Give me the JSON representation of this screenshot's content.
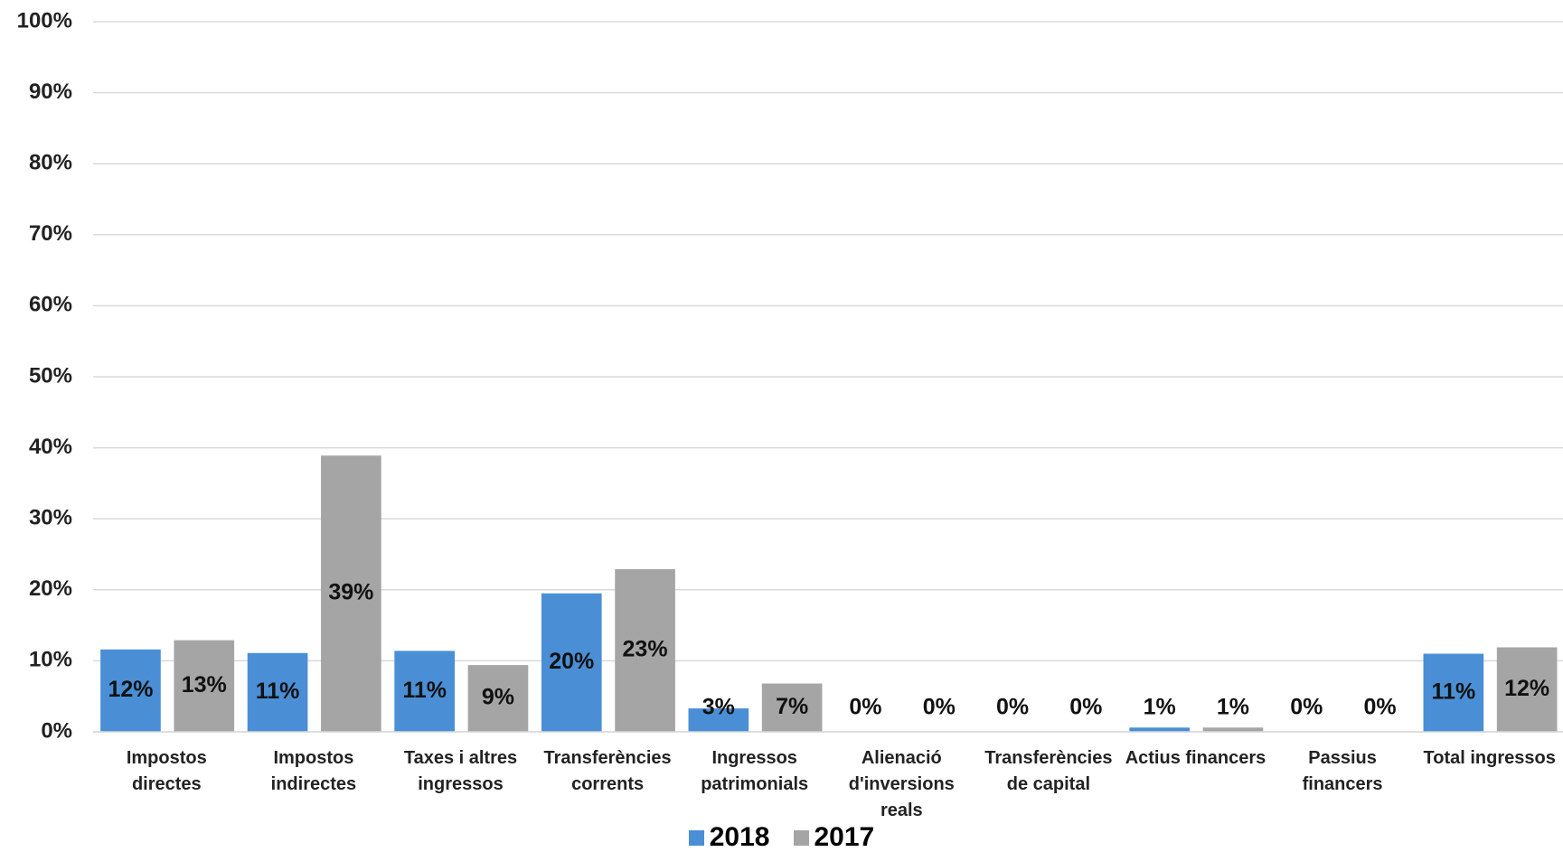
{
  "chart_data": {
    "type": "bar",
    "categories": [
      "Impostos directes",
      "Impostos indirectes",
      "Taxes i altres ingressos",
      "Transferències corrents",
      "Ingressos patrimonials",
      "Alienació d'inversions reals",
      "Transferències de capital",
      "Actius financers",
      "Passius financers",
      "Total ingressos"
    ],
    "series": [
      {
        "name": "2018",
        "color": "#4a8fd6",
        "values": [
          11.6,
          11.1,
          11.4,
          19.5,
          3.3,
          0,
          0,
          0.6,
          0,
          11.0
        ],
        "value_labels": [
          "12%",
          "11%",
          "11%",
          "20%",
          "3%",
          "0%",
          "0%",
          "1%",
          "0%",
          "11%"
        ]
      },
      {
        "name": "2017",
        "color": "#a5a5a5",
        "values": [
          12.9,
          38.9,
          9.4,
          22.9,
          6.8,
          0,
          0,
          0.6,
          0,
          11.9
        ],
        "value_labels": [
          "13%",
          "39%",
          "9%",
          "23%",
          "7%",
          "0%",
          "0%",
          "1%",
          "0%",
          "12%"
        ]
      }
    ],
    "ylim": [
      0,
      100
    ],
    "yticks": [
      {
        "value": 0,
        "label": "0%"
      },
      {
        "value": 10,
        "label": "10%"
      },
      {
        "value": 20,
        "label": "20%"
      },
      {
        "value": 30,
        "label": "30%"
      },
      {
        "value": 40,
        "label": "40%"
      },
      {
        "value": 50,
        "label": "50%"
      },
      {
        "value": 60,
        "label": "60%"
      },
      {
        "value": 70,
        "label": "70%"
      },
      {
        "value": 80,
        "label": "80%"
      },
      {
        "value": 90,
        "label": "90%"
      },
      {
        "value": 100,
        "label": "100%"
      }
    ],
    "grid": true,
    "legend": "bottom"
  }
}
